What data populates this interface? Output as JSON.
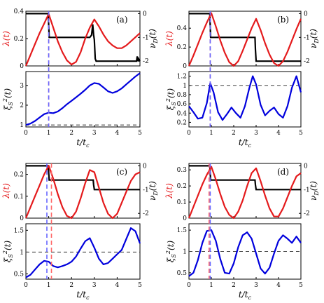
{
  "chart_data": [
    {
      "id": "a",
      "panel_label": "(a)",
      "top": {
        "ylabel_left": "λ(t)",
        "ylabel_right": "ν_D(t)",
        "ylim_left": [
          0,
          0.4
        ],
        "yticks_left": [
          "0",
          "0.2",
          "0.4"
        ],
        "ytick_vals_left": [
          0,
          0.2,
          0.4
        ],
        "ylim_right": [
          -2.2,
          0.1
        ],
        "yticks_right": [
          "0",
          "-1",
          "-2"
        ],
        "ytick_vals_right": [
          0,
          -1,
          -2
        ],
        "lambda": {
          "color": "#e41a1c",
          "x": [
            0,
            0.2,
            0.4,
            0.6,
            0.8,
            1.0,
            1.2,
            1.4,
            1.6,
            1.8,
            2.0,
            2.2,
            2.4,
            2.6,
            2.8,
            3.0,
            3.2,
            3.4,
            3.6,
            3.8,
            4.0,
            4.2,
            4.4,
            4.6,
            4.8,
            5.0
          ],
          "y": [
            0.0,
            0.08,
            0.16,
            0.24,
            0.31,
            0.38,
            0.28,
            0.18,
            0.1,
            0.04,
            0.01,
            0.03,
            0.1,
            0.2,
            0.28,
            0.34,
            0.29,
            0.23,
            0.18,
            0.15,
            0.13,
            0.13,
            0.15,
            0.18,
            0.21,
            0.24
          ]
        },
        "nu": {
          "color": "#000000",
          "x": [
            0,
            0.98,
            1.0,
            1.02,
            2.8,
            2.88,
            2.93,
            2.97,
            3.0,
            3.04,
            3.08,
            3.12,
            4.85,
            4.88,
            4.91,
            4.94,
            5.0
          ],
          "y": [
            0,
            0,
            -0.5,
            -1,
            -1,
            -0.9,
            -0.45,
            -0.9,
            -1.1,
            -1.9,
            -2.0,
            -2.0,
            -2.0,
            -1.8,
            -2.0,
            -1.9,
            -2.0
          ]
        }
      },
      "bottom": {
        "ylabel": "ξ_S²(t)",
        "ylim": [
          0.9,
          3.7
        ],
        "yticks": [
          "1",
          "2",
          "3"
        ],
        "ytick_vals": [
          1,
          2,
          3
        ],
        "dashed_y": 1,
        "xi": {
          "color": "#0000dd",
          "x": [
            0,
            0.2,
            0.4,
            0.6,
            0.8,
            1.0,
            1.2,
            1.4,
            1.6,
            1.8,
            2.0,
            2.2,
            2.4,
            2.6,
            2.8,
            3.0,
            3.2,
            3.4,
            3.6,
            3.8,
            4.0,
            4.2,
            4.4,
            4.6,
            4.8,
            5.0
          ],
          "y": [
            1.0,
            1.07,
            1.2,
            1.38,
            1.55,
            1.62,
            1.6,
            1.68,
            1.85,
            2.05,
            2.22,
            2.4,
            2.58,
            2.78,
            3.0,
            3.12,
            3.08,
            2.9,
            2.7,
            2.62,
            2.7,
            2.85,
            3.05,
            3.25,
            3.45,
            3.62
          ]
        }
      },
      "vlines": [
        {
          "x": 1.0,
          "color": "#ff6666"
        },
        {
          "x": 1.0,
          "color": "#6666ff"
        }
      ]
    },
    {
      "id": "b",
      "panel_label": "(b)",
      "top": {
        "ylabel_left": "λ(t)",
        "ylabel_right": "ν_D(t)",
        "ylim_left": [
          0,
          0.58
        ],
        "yticks_left": [
          "0",
          "0.2",
          "0.4"
        ],
        "ytick_vals_left": [
          0,
          0.2,
          0.4
        ],
        "ylim_right": [
          -2.2,
          0.1
        ],
        "yticks_right": [
          "0",
          "-1",
          "-2"
        ],
        "ytick_vals_right": [
          0,
          -1,
          -2
        ],
        "lambda": {
          "color": "#e41a1c",
          "x": [
            0,
            0.2,
            0.4,
            0.6,
            0.8,
            1.0,
            1.2,
            1.4,
            1.6,
            1.8,
            2.0,
            2.2,
            2.4,
            2.6,
            2.8,
            3.0,
            3.2,
            3.4,
            3.6,
            3.8,
            4.0,
            4.2,
            4.4,
            4.6,
            4.8,
            5.0
          ],
          "y": [
            0.0,
            0.11,
            0.23,
            0.35,
            0.46,
            0.56,
            0.42,
            0.27,
            0.14,
            0.04,
            0.0,
            0.05,
            0.16,
            0.28,
            0.4,
            0.5,
            0.38,
            0.24,
            0.12,
            0.03,
            0.0,
            0.05,
            0.15,
            0.27,
            0.39,
            0.5
          ]
        },
        "nu": {
          "color": "#000000",
          "x": [
            0,
            0.93,
            0.95,
            0.97,
            2.95,
            2.97,
            3.0,
            5.0
          ],
          "y": [
            0,
            0,
            -0.5,
            -1,
            -1,
            -1.5,
            -2,
            -2
          ]
        }
      },
      "bottom": {
        "ylabel": "ξ_S²(t)",
        "ylim": [
          0.1,
          1.3
        ],
        "yticks": [
          "0.2",
          "0.4",
          "0.6",
          "0.8",
          "1",
          "1.2"
        ],
        "ytick_vals": [
          0.2,
          0.4,
          0.6,
          0.8,
          1.0,
          1.2
        ],
        "dashed_y": 1,
        "xi": {
          "color": "#0000dd",
          "x": [
            0,
            0.2,
            0.4,
            0.6,
            0.8,
            0.95,
            1.1,
            1.3,
            1.5,
            1.7,
            1.9,
            2.1,
            2.3,
            2.5,
            2.7,
            2.85,
            3.0,
            3.2,
            3.4,
            3.6,
            3.8,
            4.0,
            4.2,
            4.4,
            4.6,
            4.8,
            5.0
          ],
          "y": [
            0.55,
            0.42,
            0.28,
            0.3,
            0.62,
            1.05,
            0.85,
            0.42,
            0.25,
            0.38,
            0.52,
            0.4,
            0.3,
            0.55,
            0.95,
            1.2,
            1.02,
            0.58,
            0.35,
            0.45,
            0.52,
            0.38,
            0.3,
            0.55,
            0.95,
            1.2,
            0.85
          ]
        }
      },
      "vlines": [
        {
          "x": 0.95,
          "color": "#ff6666"
        },
        {
          "x": 0.95,
          "color": "#6666ff"
        }
      ]
    },
    {
      "id": "c",
      "panel_label": "(c)",
      "top": {
        "ylabel_left": "λ(t)",
        "ylabel_right": "ν_D(t)",
        "ylim_left": [
          0,
          0.25
        ],
        "yticks_left": [
          "0",
          "0.1",
          "0.2"
        ],
        "ytick_vals_left": [
          0,
          0.1,
          0.2
        ],
        "ylim_right": [
          -2.2,
          0.1
        ],
        "yticks_right": [
          "0",
          "-1",
          "-2"
        ],
        "ytick_vals_right": [
          0,
          -1,
          -2
        ],
        "lambda": {
          "color": "#e41a1c",
          "x": [
            0,
            0.2,
            0.4,
            0.6,
            0.8,
            1.0,
            1.2,
            1.4,
            1.6,
            1.8,
            2.0,
            2.2,
            2.4,
            2.6,
            2.8,
            3.0,
            3.2,
            3.4,
            3.6,
            3.8,
            4.0,
            4.2,
            4.4,
            4.6,
            4.8,
            5.0
          ],
          "y": [
            0.0,
            0.05,
            0.1,
            0.15,
            0.2,
            0.24,
            0.18,
            0.11,
            0.05,
            0.01,
            0.0,
            0.03,
            0.09,
            0.16,
            0.22,
            0.21,
            0.14,
            0.07,
            0.02,
            0.0,
            0.02,
            0.07,
            0.12,
            0.17,
            0.2,
            0.21
          ]
        },
        "nu": {
          "color": "#000000",
          "x": [
            0,
            0.98,
            1.0,
            1.02,
            2.95,
            2.97,
            3.0,
            5.0
          ],
          "y": [
            0,
            0,
            -0.3,
            -0.6,
            -0.6,
            -0.8,
            -1,
            -1
          ]
        }
      },
      "bottom": {
        "ylabel": "ξ_S²(t)",
        "ylim": [
          0.38,
          1.65
        ],
        "yticks": [
          "0.5",
          "1",
          "1.5"
        ],
        "ytick_vals": [
          0.5,
          1.0,
          1.5
        ],
        "dashed_y": 1,
        "xi": {
          "color": "#0000dd",
          "x": [
            0,
            0.2,
            0.4,
            0.6,
            0.8,
            1.0,
            1.2,
            1.4,
            1.6,
            1.8,
            2.0,
            2.2,
            2.4,
            2.6,
            2.8,
            3.0,
            3.2,
            3.4,
            3.6,
            3.8,
            4.0,
            4.2,
            4.4,
            4.6,
            4.8,
            5.0
          ],
          "y": [
            0.42,
            0.48,
            0.6,
            0.72,
            0.8,
            0.78,
            0.68,
            0.65,
            0.68,
            0.72,
            0.78,
            0.9,
            1.08,
            1.25,
            1.32,
            1.1,
            0.85,
            0.72,
            0.75,
            0.85,
            0.95,
            1.05,
            1.3,
            1.55,
            1.48,
            1.2
          ]
        }
      },
      "vlines": [
        {
          "x": 0.92,
          "color": "#6666ff"
        },
        {
          "x": 1.12,
          "color": "#ff6666"
        }
      ]
    },
    {
      "id": "d",
      "panel_label": "(d)",
      "top": {
        "ylabel_left": "λ(t)",
        "ylabel_right": "ν_D(t)",
        "ylim_left": [
          0,
          0.34
        ],
        "yticks_left": [
          "0",
          "0.1",
          "0.2",
          "0.3"
        ],
        "ytick_vals_left": [
          0,
          0.1,
          0.2,
          0.3
        ],
        "ylim_right": [
          -2.2,
          0.1
        ],
        "yticks_right": [
          "0",
          "-1",
          "-2"
        ],
        "ytick_vals_right": [
          0,
          -1,
          -2
        ],
        "lambda": {
          "color": "#e41a1c",
          "x": [
            0,
            0.2,
            0.4,
            0.6,
            0.8,
            1.0,
            1.2,
            1.4,
            1.6,
            1.8,
            2.0,
            2.2,
            2.4,
            2.6,
            2.8,
            3.0,
            3.2,
            3.4,
            3.6,
            3.8,
            4.0,
            4.2,
            4.4,
            4.6,
            4.8,
            5.0
          ],
          "y": [
            0.0,
            0.07,
            0.14,
            0.21,
            0.27,
            0.32,
            0.24,
            0.15,
            0.07,
            0.02,
            0.0,
            0.04,
            0.11,
            0.2,
            0.28,
            0.31,
            0.23,
            0.14,
            0.06,
            0.01,
            0.01,
            0.06,
            0.13,
            0.2,
            0.26,
            0.28
          ]
        },
        "nu": {
          "color": "#000000",
          "x": [
            0,
            0.93,
            0.95,
            0.97,
            2.95,
            2.97,
            3.0,
            5.0
          ],
          "y": [
            0,
            0,
            -0.3,
            -0.6,
            -0.6,
            -0.8,
            -1,
            -1
          ]
        }
      },
      "bottom": {
        "ylabel": "ξ_S²(t)",
        "ylim": [
          0.35,
          1.65
        ],
        "yticks": [
          "0.5",
          "1",
          "1.5"
        ],
        "ytick_vals": [
          0.5,
          1.0,
          1.5
        ],
        "dashed_y": 1,
        "xi": {
          "color": "#0000dd",
          "x": [
            0,
            0.2,
            0.4,
            0.6,
            0.8,
            1.0,
            1.2,
            1.4,
            1.6,
            1.8,
            2.0,
            2.2,
            2.4,
            2.6,
            2.8,
            3.0,
            3.2,
            3.4,
            3.6,
            3.8,
            4.0,
            4.2,
            4.4,
            4.6,
            4.8,
            5.0
          ],
          "y": [
            0.42,
            0.5,
            0.8,
            1.2,
            1.48,
            1.5,
            1.25,
            0.82,
            0.5,
            0.48,
            0.72,
            1.1,
            1.38,
            1.45,
            1.3,
            0.95,
            0.6,
            0.48,
            0.62,
            0.95,
            1.25,
            1.38,
            1.3,
            1.2,
            1.35,
            1.2
          ]
        }
      },
      "vlines": [
        {
          "x": 0.9,
          "color": "#ff6666"
        },
        {
          "x": 0.95,
          "color": "#6666ff"
        }
      ]
    }
  ],
  "x_axis": {
    "label": "t/t_c",
    "xlim": [
      0,
      5
    ],
    "ticks": [
      "0",
      "1",
      "2",
      "3",
      "4",
      "5"
    ],
    "tick_vals": [
      0,
      1,
      2,
      3,
      4,
      5
    ]
  }
}
